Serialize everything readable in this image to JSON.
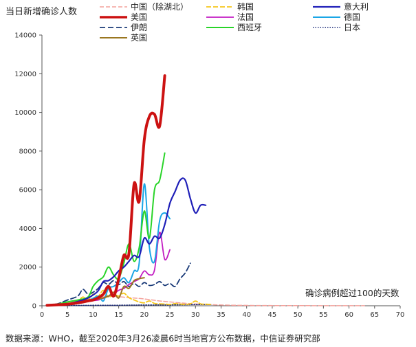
{
  "chart_data": {
    "type": "line",
    "ylabel": "当日新增确诊人数",
    "xlabel": "确诊病例超过100的天数",
    "source": "数据来源：WHO，截至2020年3月26凌晨6时当地官方公布数据，中信证券研究部",
    "xlim": [
      0,
      70
    ],
    "ylim": [
      0,
      14000
    ],
    "xticks": [
      0,
      5,
      10,
      15,
      20,
      25,
      30,
      35,
      40,
      45,
      50,
      55,
      60,
      65,
      70
    ],
    "yticks": [
      0,
      2000,
      4000,
      6000,
      8000,
      10000,
      12000,
      14000
    ],
    "grid": false,
    "legend_position": "top",
    "series": [
      {
        "name": "中国（除湖北）",
        "color": "#f4a09a",
        "dash": "6,3",
        "width": 1.5,
        "points": [
          [
            1,
            40
          ],
          [
            3,
            80
          ],
          [
            5,
            150
          ],
          [
            7,
            250
          ],
          [
            9,
            330
          ],
          [
            11,
            420
          ],
          [
            13,
            500
          ],
          [
            15,
            470
          ],
          [
            17,
            420
          ],
          [
            19,
            380
          ],
          [
            21,
            320
          ],
          [
            23,
            250
          ],
          [
            25,
            200
          ],
          [
            27,
            150
          ],
          [
            29,
            110
          ],
          [
            31,
            80
          ],
          [
            33,
            60
          ],
          [
            35,
            40
          ],
          [
            38,
            25
          ],
          [
            42,
            15
          ],
          [
            46,
            10
          ],
          [
            50,
            8
          ],
          [
            55,
            5
          ],
          [
            60,
            3
          ],
          [
            63,
            5
          ]
        ]
      },
      {
        "name": "韩国",
        "color": "#f6c61a",
        "dash": "7,3",
        "width": 1.8,
        "points": [
          [
            1,
            20
          ],
          [
            3,
            60
          ],
          [
            5,
            120
          ],
          [
            7,
            250
          ],
          [
            8,
            450
          ],
          [
            9,
            300
          ],
          [
            10,
            600
          ],
          [
            11,
            500
          ],
          [
            12,
            800
          ],
          [
            13,
            450
          ],
          [
            14,
            600
          ],
          [
            15,
            500
          ],
          [
            16,
            650
          ],
          [
            17,
            420
          ],
          [
            18,
            300
          ],
          [
            19,
            200
          ],
          [
            20,
            150
          ],
          [
            21,
            250
          ],
          [
            22,
            120
          ],
          [
            23,
            100
          ],
          [
            24,
            90
          ],
          [
            25,
            70
          ],
          [
            26,
            110
          ],
          [
            27,
            90
          ],
          [
            28,
            70
          ],
          [
            29,
            100
          ],
          [
            30,
            240
          ],
          [
            31,
            100
          ],
          [
            32,
            80
          ],
          [
            33,
            70
          ]
        ]
      },
      {
        "name": "意大利",
        "color": "#1f1fb8",
        "dash": "",
        "width": 2.2,
        "points": [
          [
            1,
            20
          ],
          [
            3,
            60
          ],
          [
            5,
            100
          ],
          [
            7,
            220
          ],
          [
            9,
            400
          ],
          [
            10,
            560
          ],
          [
            11,
            780
          ],
          [
            12,
            1250
          ],
          [
            13,
            1300
          ],
          [
            14,
            1500
          ],
          [
            15,
            1800
          ],
          [
            16,
            2000
          ],
          [
            17,
            2300
          ],
          [
            18,
            2600
          ],
          [
            19,
            2550
          ],
          [
            20,
            3500
          ],
          [
            21,
            3200
          ],
          [
            22,
            3600
          ],
          [
            23,
            3500
          ],
          [
            24,
            4200
          ],
          [
            25,
            5300
          ],
          [
            26,
            5900
          ],
          [
            27,
            6500
          ],
          [
            28,
            6500
          ],
          [
            29,
            5550
          ],
          [
            30,
            4800
          ],
          [
            31,
            5200
          ],
          [
            32,
            5200
          ]
        ]
      },
      {
        "name": "美国",
        "color": "#cc1212",
        "dash": "",
        "width": 4,
        "points": [
          [
            1,
            20
          ],
          [
            3,
            50
          ],
          [
            5,
            80
          ],
          [
            7,
            150
          ],
          [
            9,
            250
          ],
          [
            10,
            300
          ],
          [
            11,
            420
          ],
          [
            12,
            600
          ],
          [
            13,
            1000
          ],
          [
            14,
            500
          ],
          [
            15,
            1400
          ],
          [
            16,
            2600
          ],
          [
            17,
            2700
          ],
          [
            18,
            6300
          ],
          [
            19,
            5400
          ],
          [
            20,
            8600
          ],
          [
            21,
            9800
          ],
          [
            22,
            9900
          ],
          [
            23,
            9300
          ],
          [
            24,
            11900
          ]
        ]
      },
      {
        "name": "法国",
        "color": "#c21cc2",
        "dash": "",
        "width": 1.8,
        "points": [
          [
            1,
            20
          ],
          [
            3,
            50
          ],
          [
            5,
            100
          ],
          [
            7,
            150
          ],
          [
            9,
            250
          ],
          [
            11,
            300
          ],
          [
            13,
            500
          ],
          [
            14,
            600
          ],
          [
            15,
            800
          ],
          [
            16,
            900
          ],
          [
            17,
            1100
          ],
          [
            18,
            1250
          ],
          [
            19,
            1400
          ],
          [
            20,
            1800
          ],
          [
            21,
            1600
          ],
          [
            22,
            1850
          ],
          [
            23,
            3800
          ],
          [
            24,
            2400
          ],
          [
            25,
            2900
          ]
        ]
      },
      {
        "name": "德国",
        "color": "#1aa6e6",
        "dash": "",
        "width": 2,
        "points": [
          [
            1,
            30
          ],
          [
            3,
            60
          ],
          [
            5,
            100
          ],
          [
            7,
            150
          ],
          [
            9,
            250
          ],
          [
            11,
            500
          ],
          [
            12,
            250
          ],
          [
            13,
            900
          ],
          [
            14,
            1000
          ],
          [
            15,
            1200
          ],
          [
            16,
            1450
          ],
          [
            17,
            1200
          ],
          [
            18,
            1800
          ],
          [
            19,
            2200
          ],
          [
            20,
            6300
          ],
          [
            21,
            3000
          ],
          [
            22,
            2300
          ],
          [
            23,
            4400
          ],
          [
            24,
            4800
          ],
          [
            25,
            4500
          ]
        ]
      },
      {
        "name": "伊朗",
        "color": "#1a3a78",
        "dash": "8,4",
        "width": 1.8,
        "points": [
          [
            1,
            40
          ],
          [
            3,
            100
          ],
          [
            5,
            300
          ],
          [
            7,
            500
          ],
          [
            8,
            850
          ],
          [
            9,
            600
          ],
          [
            10,
            700
          ],
          [
            11,
            900
          ],
          [
            12,
            1200
          ],
          [
            13,
            1100
          ],
          [
            14,
            1300
          ],
          [
            15,
            1100
          ],
          [
            16,
            1250
          ],
          [
            17,
            1000
          ],
          [
            18,
            1150
          ],
          [
            19,
            1000
          ],
          [
            20,
            1200
          ],
          [
            21,
            1050
          ],
          [
            22,
            1100
          ],
          [
            23,
            1250
          ],
          [
            24,
            1050
          ],
          [
            25,
            1150
          ],
          [
            26,
            1000
          ],
          [
            27,
            1400
          ],
          [
            28,
            1700
          ],
          [
            29,
            2200
          ]
        ]
      },
      {
        "name": "西班牙",
        "color": "#28d428",
        "dash": "",
        "width": 2,
        "points": [
          [
            1,
            30
          ],
          [
            3,
            80
          ],
          [
            5,
            200
          ],
          [
            7,
            300
          ],
          [
            9,
            450
          ],
          [
            10,
            1000
          ],
          [
            11,
            1300
          ],
          [
            12,
            1500
          ],
          [
            13,
            2000
          ],
          [
            14,
            1600
          ],
          [
            15,
            1400
          ],
          [
            16,
            2200
          ],
          [
            17,
            3200
          ],
          [
            18,
            2300
          ],
          [
            19,
            3000
          ],
          [
            20,
            4900
          ],
          [
            21,
            3500
          ],
          [
            22,
            6000
          ],
          [
            23,
            6500
          ],
          [
            24,
            7900
          ]
        ]
      },
      {
        "name": "日本",
        "color": "#1a2a78",
        "dash": "1.5,2",
        "width": 1.5,
        "points": [
          [
            1,
            10
          ],
          [
            5,
            15
          ],
          [
            10,
            25
          ],
          [
            15,
            30
          ],
          [
            20,
            40
          ],
          [
            25,
            45
          ],
          [
            30,
            60
          ],
          [
            33,
            65
          ]
        ]
      },
      {
        "name": "英国",
        "color": "#9a7620",
        "dash": "",
        "width": 2,
        "points": [
          [
            1,
            20
          ],
          [
            3,
            60
          ],
          [
            5,
            100
          ],
          [
            7,
            200
          ],
          [
            9,
            300
          ],
          [
            11,
            350
          ],
          [
            13,
            500
          ],
          [
            14,
            700
          ],
          [
            15,
            400
          ],
          [
            16,
            1000
          ],
          [
            17,
            900
          ],
          [
            18,
            1300
          ],
          [
            19,
            1400
          ],
          [
            20,
            1450
          ]
        ]
      }
    ]
  }
}
